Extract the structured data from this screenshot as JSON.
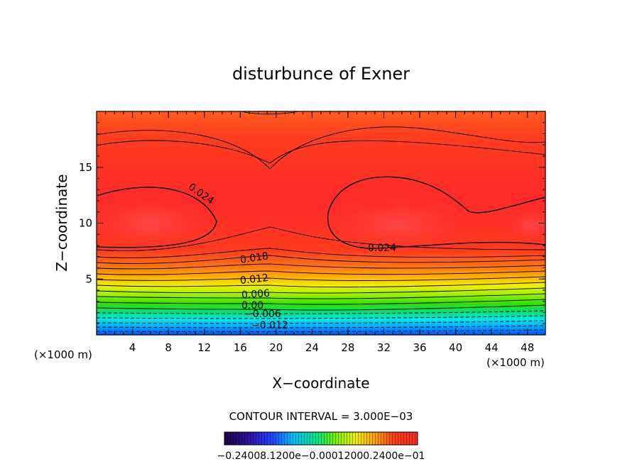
{
  "chart_data": {
    "type": "heatmap",
    "title": "disturbunce of Exner",
    "xlabel": "X−coordinate",
    "ylabel": "Z−coordinate",
    "x_unit_left": "(×1000 m)",
    "x_unit_right": "(×1000 m)",
    "xlim": [
      0,
      50
    ],
    "ylim": [
      0,
      20
    ],
    "x_ticks": [
      4,
      8,
      12,
      16,
      20,
      24,
      28,
      32,
      36,
      40,
      44,
      48
    ],
    "y_ticks": [
      5,
      10,
      15
    ],
    "contour_interval_text": "CONTOUR INTERVAL = 3.000E−03",
    "contour_labels": [
      "0.024",
      "0.024",
      "0.018",
      "0.012",
      "0.006",
      "0.00",
      "−0.006",
      "−0.012"
    ],
    "colorbar_labels_text": "−0.24008.1200e−0.00012000.2400e−01",
    "legend": "none"
  }
}
